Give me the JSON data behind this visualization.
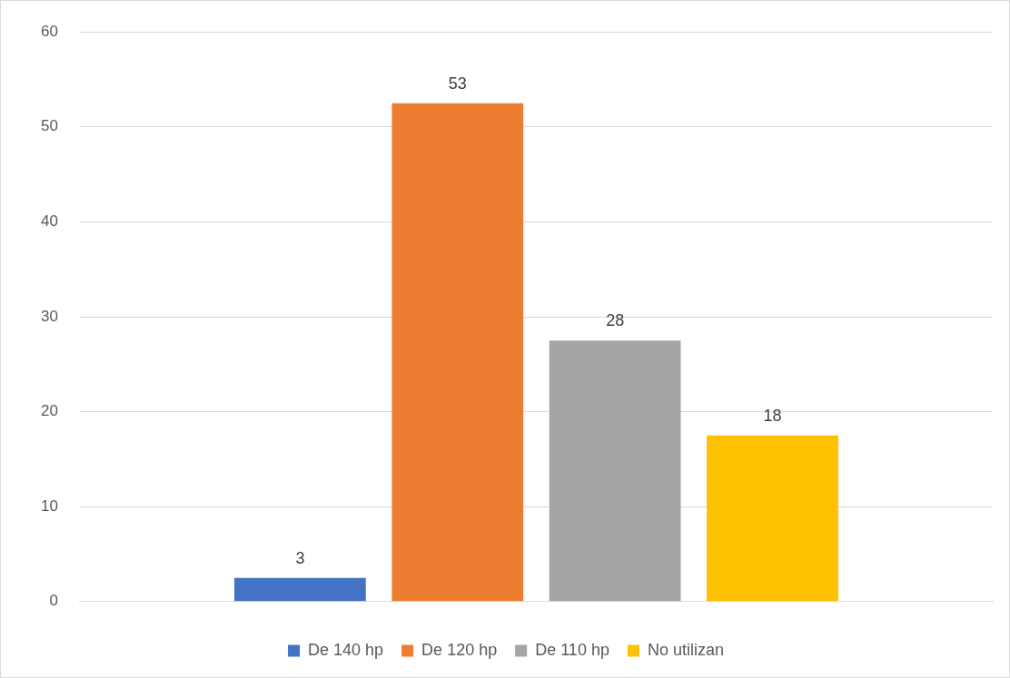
{
  "chart_data": {
    "type": "bar",
    "categories": [
      null
    ],
    "series": [
      {
        "name": "De 140 hp",
        "color": "#4472c4",
        "values": [
          2.5
        ],
        "value_labels": [
          "3"
        ]
      },
      {
        "name": "De 120 hp",
        "color": "#ed7d31",
        "values": [
          52.5
        ],
        "value_labels": [
          "53"
        ]
      },
      {
        "name": "De 110 hp",
        "color": "#a5a5a5",
        "values": [
          27.5
        ],
        "value_labels": [
          "28"
        ]
      },
      {
        "name": "No utilizan",
        "color": "#ffc000",
        "values": [
          17.5
        ],
        "value_labels": [
          "18"
        ]
      }
    ],
    "ylim": [
      0,
      60
    ],
    "yticks": [
      0,
      10,
      20,
      30,
      40,
      50,
      60
    ],
    "grid": "y",
    "legend": "bottom"
  }
}
